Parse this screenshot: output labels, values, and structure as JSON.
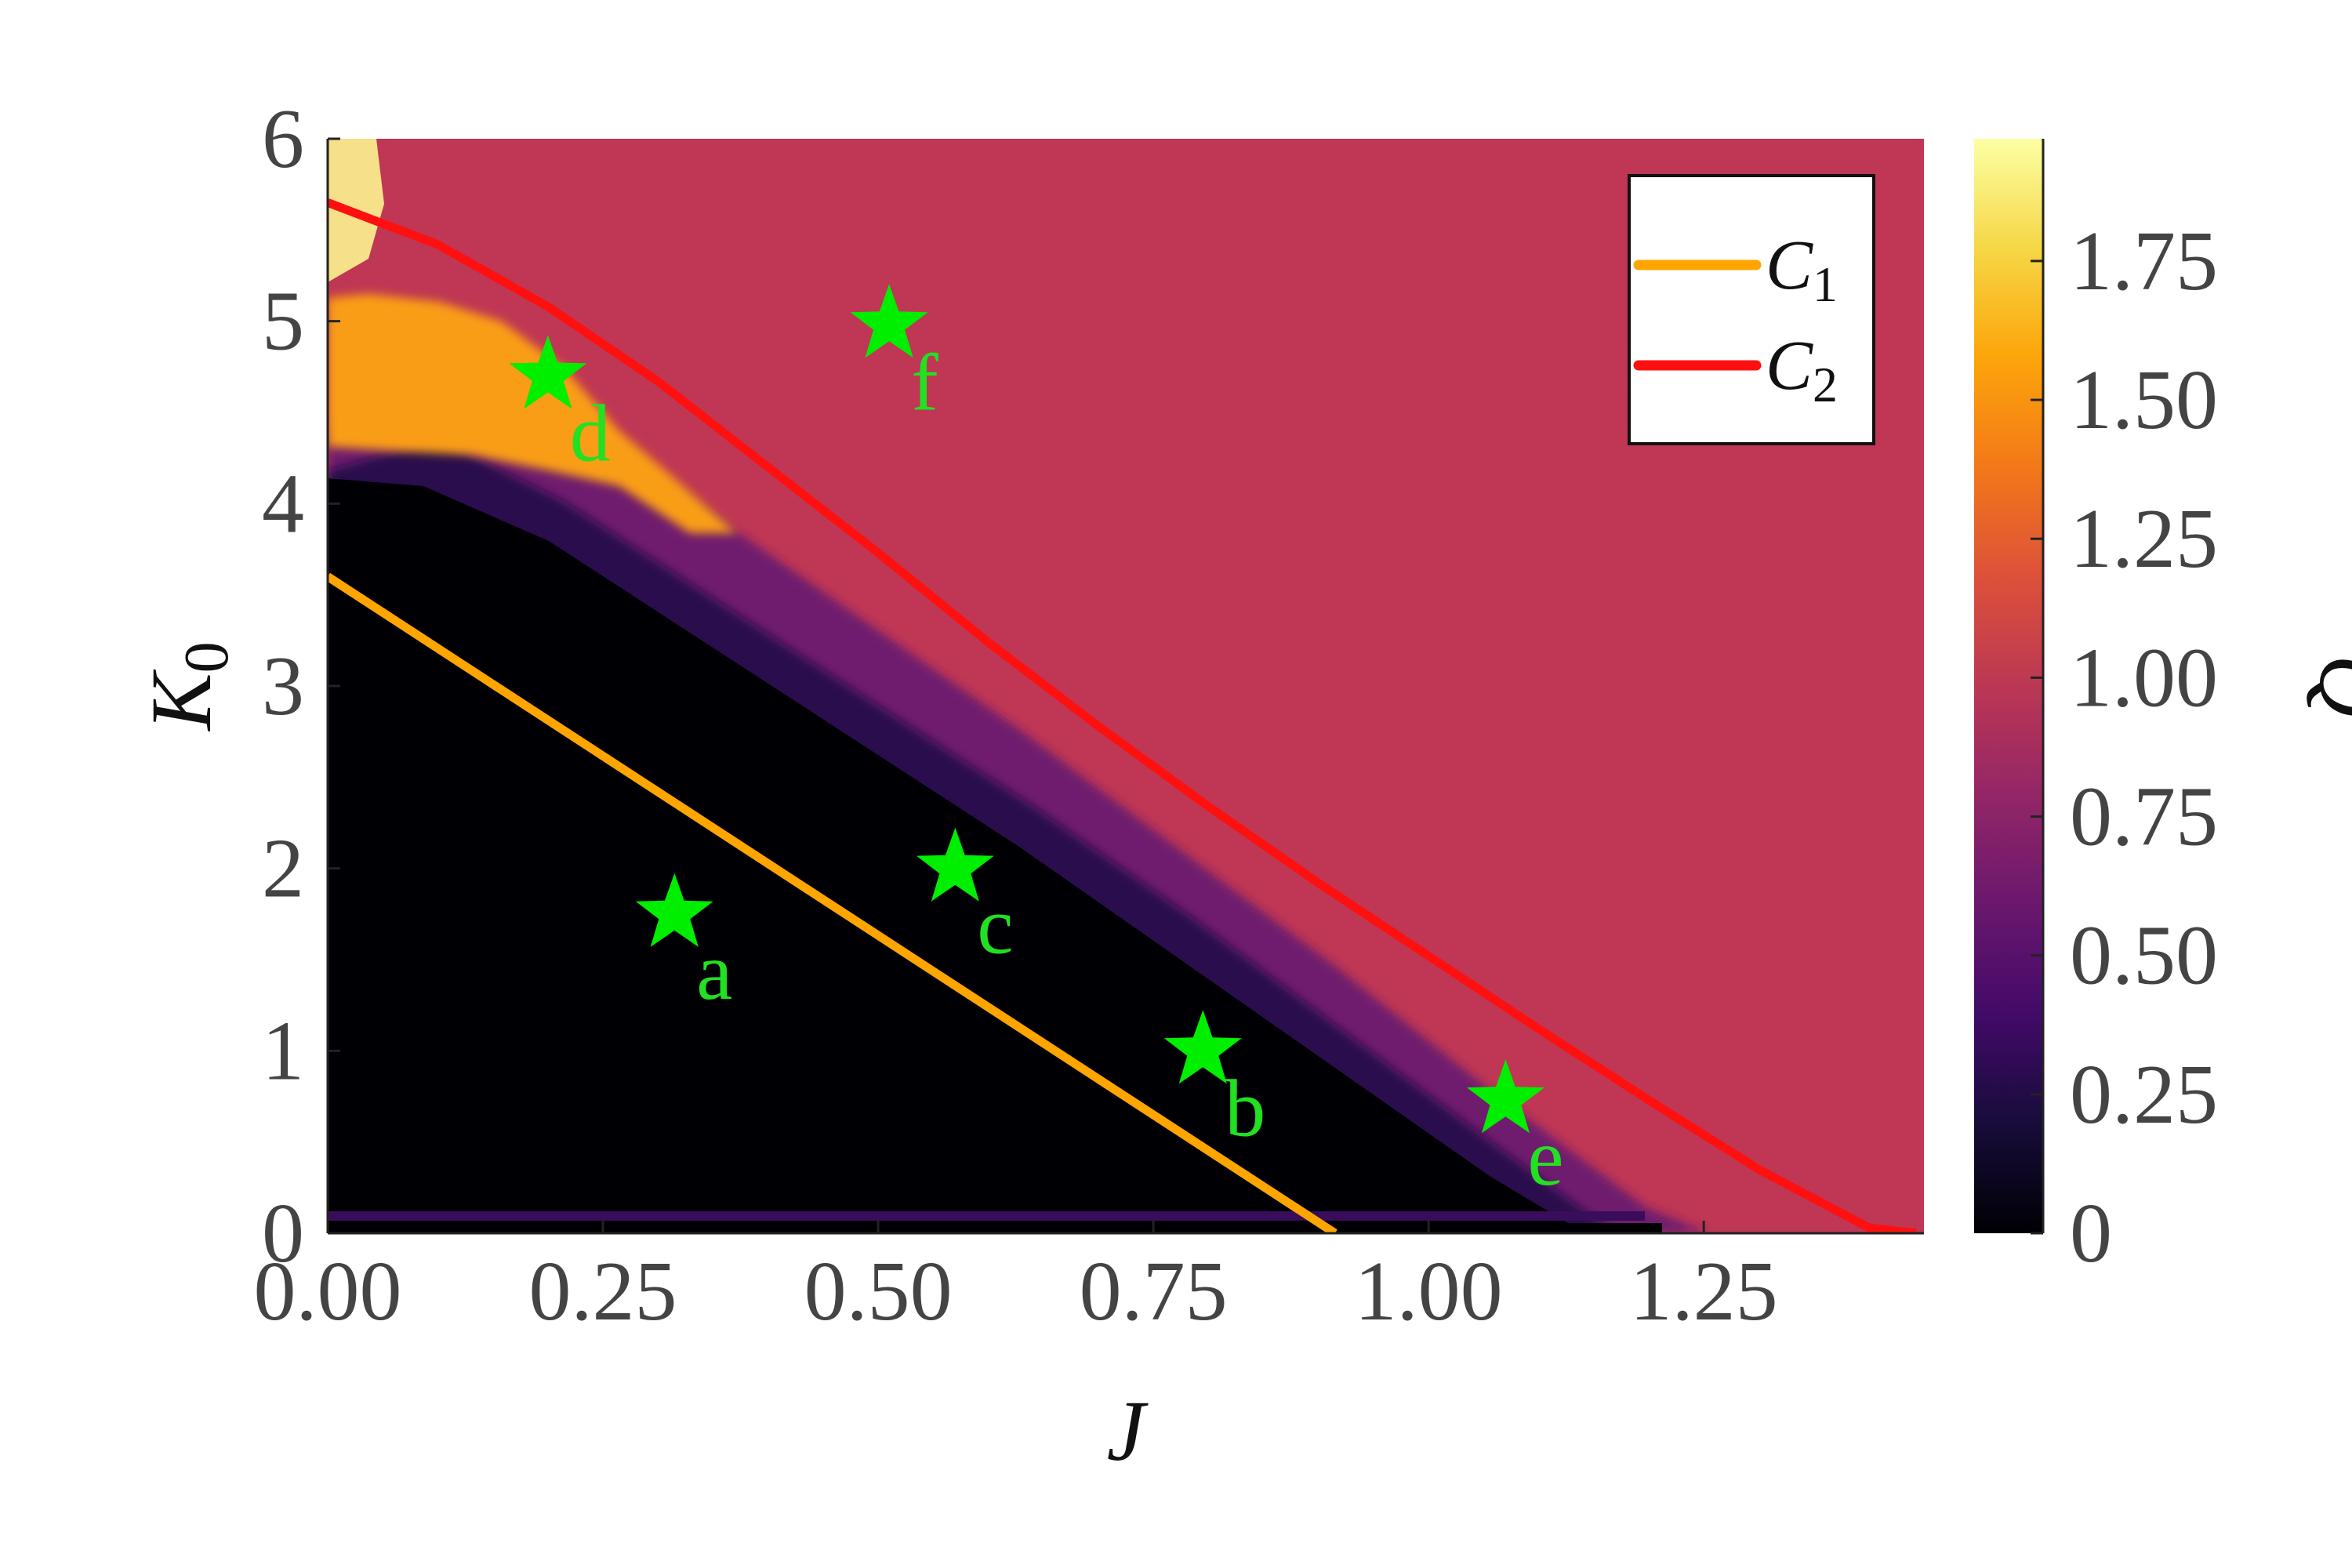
{
  "chart_data": {
    "type": "heatmap",
    "title": "",
    "xlabel": "J",
    "ylabel": "K",
    "ylabel_subscript": "0",
    "colorbar_label": "Q",
    "xlim": [
      0,
      1.45
    ],
    "ylim": [
      0,
      6
    ],
    "clim": [
      0,
      1.97
    ],
    "colormap": "inferno",
    "x_ticks": [
      {
        "value": 0.0,
        "label": "0.00"
      },
      {
        "value": 0.25,
        "label": "0.25"
      },
      {
        "value": 0.5,
        "label": "0.50"
      },
      {
        "value": 0.75,
        "label": "0.75"
      },
      {
        "value": 1.0,
        "label": "1.00"
      },
      {
        "value": 1.25,
        "label": "1.25"
      }
    ],
    "y_ticks": [
      {
        "value": 0,
        "label": "0"
      },
      {
        "value": 1,
        "label": "1"
      },
      {
        "value": 2,
        "label": "2"
      },
      {
        "value": 3,
        "label": "3"
      },
      {
        "value": 4,
        "label": "4"
      },
      {
        "value": 5,
        "label": "5"
      },
      {
        "value": 6,
        "label": "6"
      }
    ],
    "colorbar_ticks": [
      {
        "value": 0,
        "label": "0"
      },
      {
        "value": 0.25,
        "label": "0.25"
      },
      {
        "value": 0.5,
        "label": "0.50"
      },
      {
        "value": 0.75,
        "label": "0.75"
      },
      {
        "value": 1.0,
        "label": "1.00"
      },
      {
        "value": 1.25,
        "label": "1.25"
      },
      {
        "value": 1.5,
        "label": "1.50"
      },
      {
        "value": 1.75,
        "label": "1.75"
      }
    ],
    "heatmap_regions": {
      "background_value": 1.1,
      "dark_region_value": 0.0,
      "bright_region_value": 1.6,
      "peak_value": 1.95
    },
    "series": [
      {
        "name": "C",
        "subscript": "1",
        "color": "#ffa500",
        "x": [
          0.0,
          0.915
        ],
        "y": [
          3.6,
          0.0
        ]
      },
      {
        "name": "C",
        "subscript": "2",
        "color": "#ff1010",
        "x": [
          0.0,
          0.1,
          0.2,
          0.3,
          0.4,
          0.5,
          0.6,
          0.7,
          0.8,
          0.9,
          1.0,
          1.1,
          1.2,
          1.3,
          1.4,
          1.443
        ],
        "y": [
          5.65,
          5.42,
          5.08,
          4.67,
          4.2,
          3.73,
          3.24,
          2.78,
          2.34,
          1.92,
          1.52,
          1.12,
          0.73,
          0.35,
          0.03,
          0.0
        ]
      }
    ],
    "markers": [
      {
        "label": "a",
        "x": 0.315,
        "y": 1.75
      },
      {
        "label": "b",
        "x": 0.795,
        "y": 1.0
      },
      {
        "label": "c",
        "x": 0.57,
        "y": 2.0
      },
      {
        "label": "d",
        "x": 0.2,
        "y": 4.7
      },
      {
        "label": "e",
        "x": 1.07,
        "y": 0.73
      },
      {
        "label": "f",
        "x": 0.51,
        "y": 4.98
      }
    ],
    "marker_color": "#00ee00",
    "legend_position": "top-right"
  }
}
